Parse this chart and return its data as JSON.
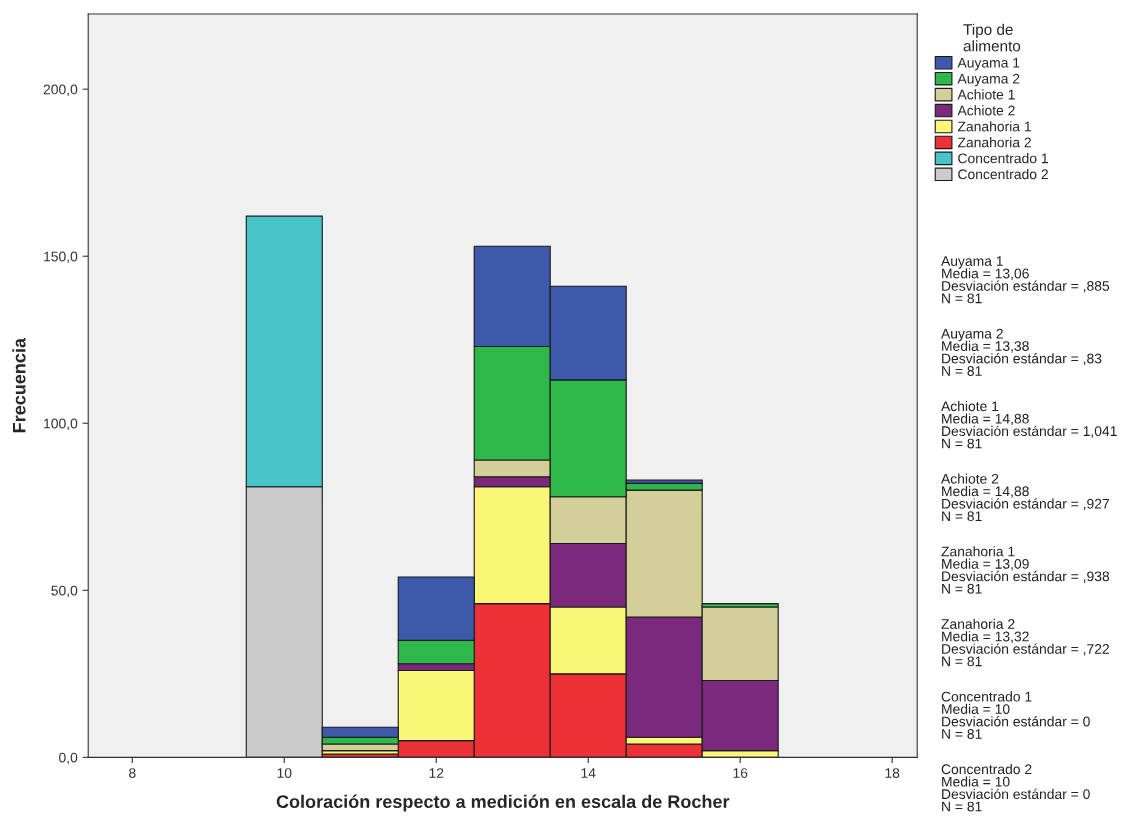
{
  "chart_data": {
    "type": "bar",
    "stacked": true,
    "xlabel": "Coloración respecto a medición en escala de Rocher",
    "ylabel": "Frecuencia",
    "legend_title": "Tipo de\nalimento",
    "legend": "right",
    "grid": false,
    "x": [
      10,
      11,
      12,
      13,
      14,
      15,
      16
    ],
    "xlim": [
      7.42,
      18.33
    ],
    "xticks": [
      8,
      10,
      12,
      14,
      16,
      18
    ],
    "ylim": [
      0,
      222.5
    ],
    "yticks": [
      {
        "value": 0,
        "label": "0,0"
      },
      {
        "value": 50,
        "label": "50,0"
      },
      {
        "value": 100,
        "label": "100,0"
      },
      {
        "value": 150,
        "label": "150,0"
      },
      {
        "value": 200,
        "label": "200,0"
      }
    ],
    "series": [
      {
        "name": "Concentrado 2",
        "color": "#cccccc",
        "values": [
          81,
          0,
          0,
          0,
          0,
          0,
          0
        ]
      },
      {
        "name": "Concentrado 1",
        "color": "#48c3c8",
        "values": [
          81,
          0,
          0,
          0,
          0,
          0,
          0
        ]
      },
      {
        "name": "Zanahoria 2",
        "color": "#ee3137",
        "values": [
          0,
          1,
          5,
          46,
          25,
          4,
          0
        ]
      },
      {
        "name": "Zanahoria 1",
        "color": "#faf678",
        "values": [
          0,
          1,
          21,
          35,
          20,
          2,
          2
        ]
      },
      {
        "name": "Achiote 2",
        "color": "#7b297d",
        "values": [
          0,
          0,
          2,
          3,
          19,
          36,
          21
        ]
      },
      {
        "name": "Achiote 1",
        "color": "#d4cf99",
        "values": [
          0,
          2,
          0,
          5,
          14,
          38,
          22
        ]
      },
      {
        "name": "Auyama 2",
        "color": "#2eb84b",
        "values": [
          0,
          2,
          7,
          34,
          35,
          2,
          1
        ]
      },
      {
        "name": "Auyama 1",
        "color": "#3e58ac",
        "values": [
          0,
          3,
          19,
          30,
          28,
          1,
          0
        ]
      }
    ],
    "annotations": [
      "Auyama 1\nMedia = 13,06\nDesviación estándar = ,885\nN = 81",
      "Auyama 2\nMedia = 13,38\nDesviación estándar = ,83\nN = 81",
      "Achiote 1\nMedia = 14,88\nDesviación estándar = 1,041\nN = 81",
      "Achiote 2\nMedia = 14,88\nDesviación estándar = ,927\nN = 81",
      "Zanahoria 1\nMedia = 13,09\nDesviación estándar = ,938\nN = 81",
      "Zanahoria 2\nMedia = 13,32\nDesviación estándar = ,722\nN = 81",
      "Concentrado 1\nMedia = 10\nDesviación estándar = 0\nN = 81",
      "Concentrado 2\nMedia = 10\nDesviación estándar = 0\nN = 81"
    ]
  }
}
